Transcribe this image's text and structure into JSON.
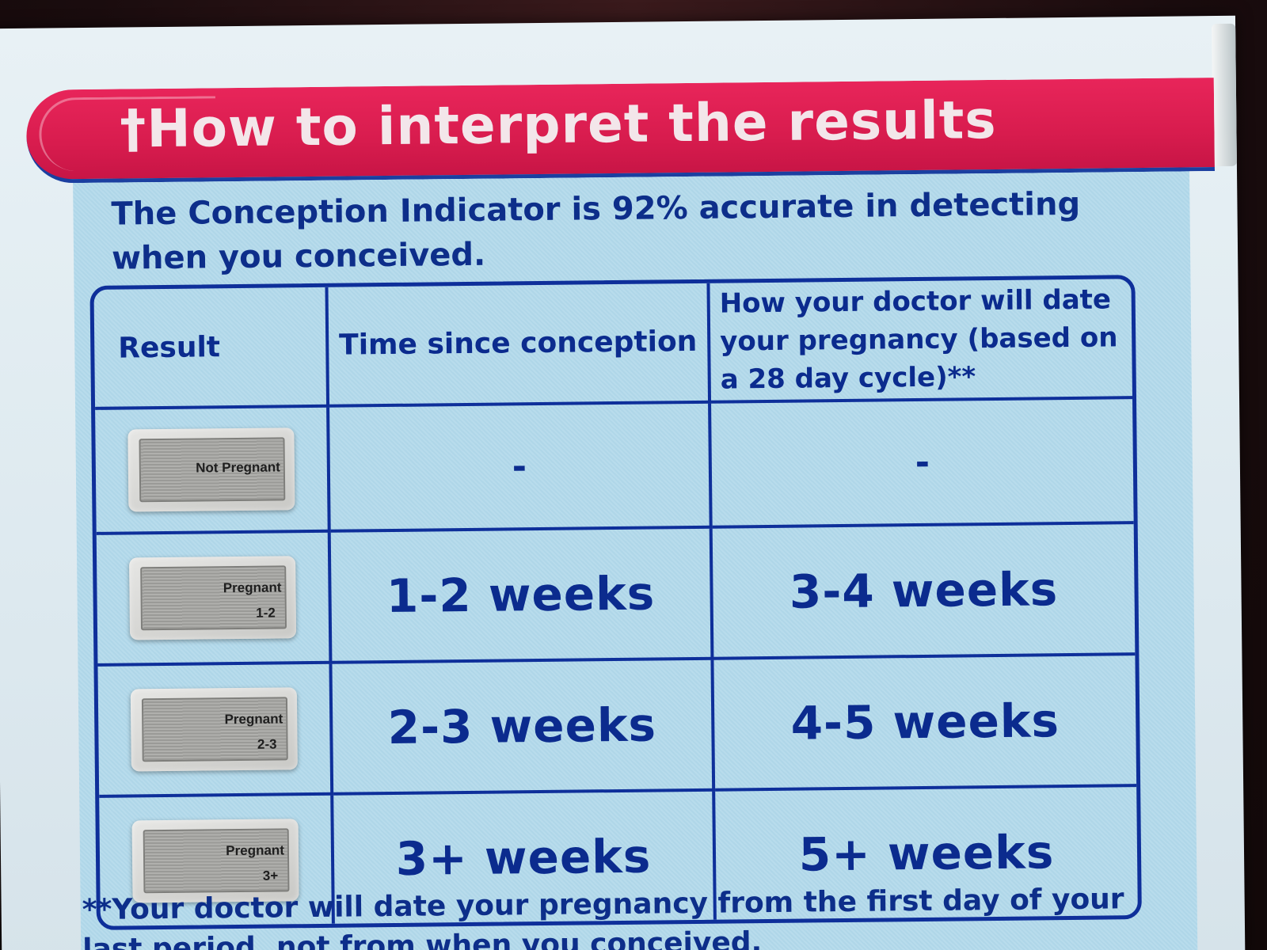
{
  "banner": {
    "title": "†How to interpret the results"
  },
  "intro": {
    "text": "The Conception Indicator is 92% accurate in detecting when you conceived."
  },
  "table": {
    "headers": {
      "result": "Result",
      "time": "Time since conception",
      "doctor": "How your doctor will date your pregnancy (based on a 28 day cycle)**"
    },
    "rows": [
      {
        "display_line1": "Not Pregnant",
        "display_line2": "",
        "time": "-",
        "doctor": "-"
      },
      {
        "display_line1": "Pregnant",
        "display_line2": "1-2",
        "time": "1-2 weeks",
        "doctor": "3-4 weeks"
      },
      {
        "display_line1": "Pregnant",
        "display_line2": "2-3",
        "time": "2-3 weeks",
        "doctor": "4-5 weeks"
      },
      {
        "display_line1": "Pregnant",
        "display_line2": "3+",
        "time": "3+ weeks",
        "doctor": "5+ weeks"
      }
    ]
  },
  "footnote": {
    "text": "**Your doctor will date your pregnancy from the first day of your last period, not from when you conceived."
  },
  "colors": {
    "banner": "#d81c4e",
    "text_blue": "#0d2e8a",
    "panel": "#b8dcec"
  }
}
